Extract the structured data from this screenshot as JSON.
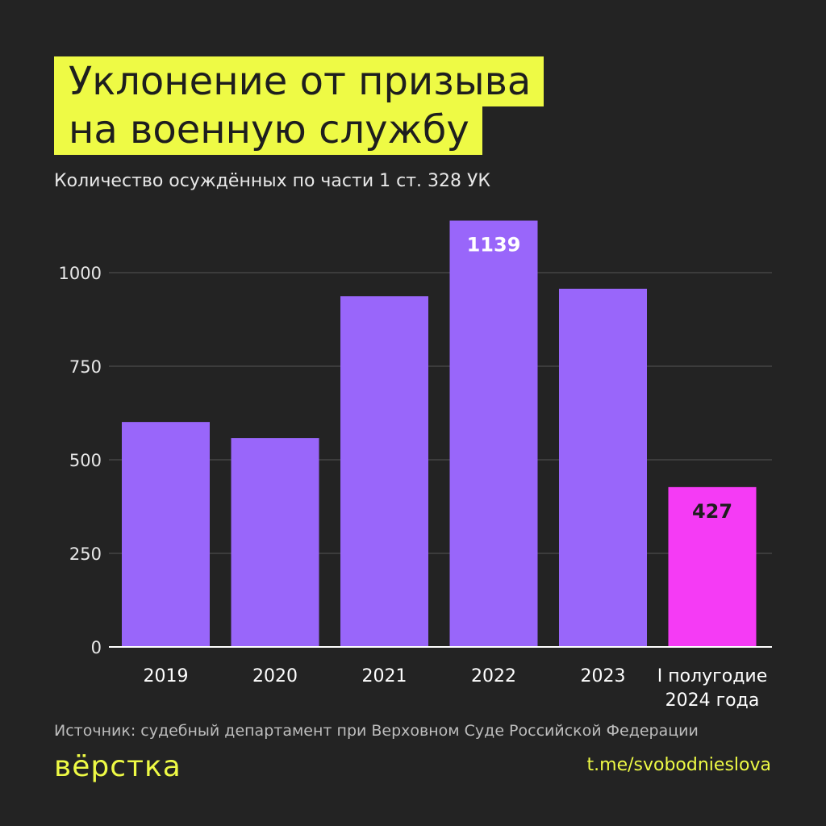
{
  "header": {
    "title_lines": [
      "Уклонение от призыва",
      "на военную службу"
    ],
    "subtitle": "Количество осуждённых по части 1 ст. 328 УК"
  },
  "footer": {
    "source": "Источник: судебный департамент при Верховном Суде Российской Федерации",
    "logo": "вёрстка",
    "link": "t.me/svobodnieslova"
  },
  "colors": {
    "background": "#232323",
    "bar": "#9966fa",
    "highlight": "#f53bf5",
    "accent": "#eefa45"
  },
  "chart_data": {
    "type": "bar",
    "title": "",
    "xlabel": "",
    "ylabel": "",
    "categories": [
      "2019",
      "2020",
      "2021",
      "2022",
      "2023",
      "I полугодие\n2024 года"
    ],
    "values": [
      601,
      558,
      937,
      1139,
      957,
      427
    ],
    "data_labels": {
      "3": "1139",
      "5": "427"
    },
    "highlight_index": 5,
    "ylim": [
      0,
      1139
    ],
    "yticks": [
      0,
      250,
      500,
      750,
      1000
    ],
    "grid": true,
    "legend": "none"
  }
}
